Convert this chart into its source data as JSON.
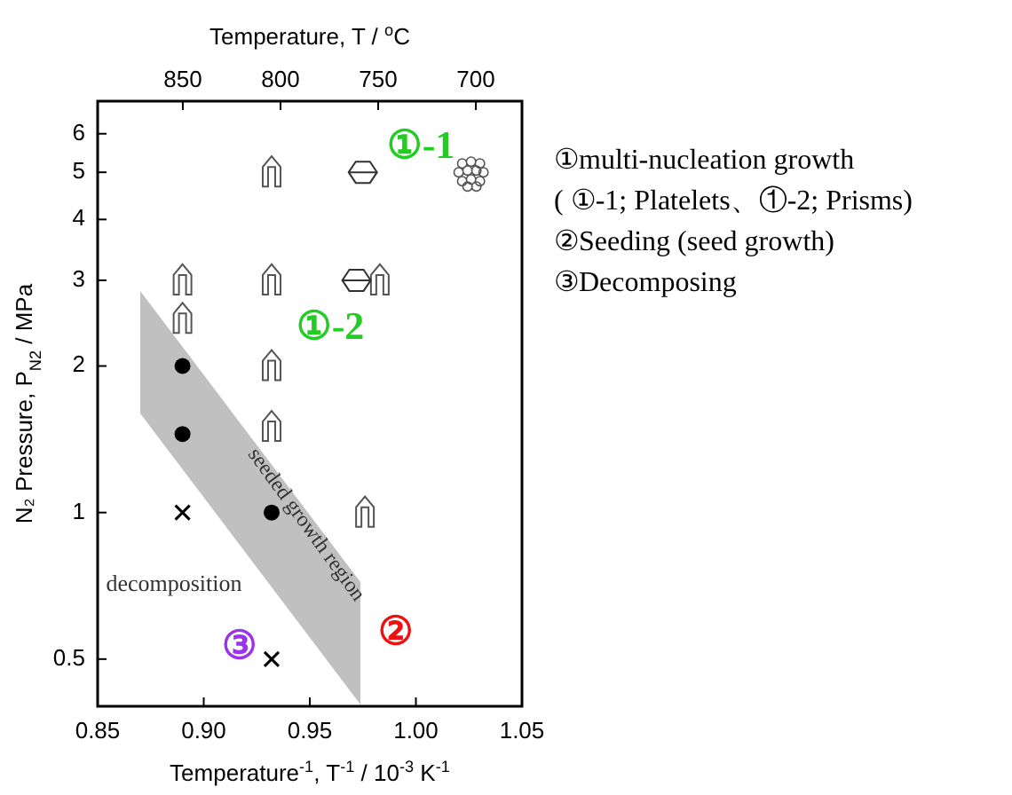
{
  "chart_data": {
    "type": "scatter",
    "xlabel": "Temperature$^{-1}$, T$^{-1}$ / 10$^{-3}$ K$^{-1}$",
    "ylabel": "N₂ Pressure, P$_{N2}$ / MPa",
    "x2label": "Temperature, T / $^{o}$C",
    "xlim": [
      0.85,
      1.05
    ],
    "xticks": [
      0.85,
      {
        "value": 0.9,
        "label": "0.90"
      },
      0.95,
      {
        "value": 1,
        "label": "1.00"
      },
      1.05
    ],
    "x2lim": [
      893.6,
      676.4
    ],
    "x2ticks": [
      850,
      800,
      750,
      700
    ],
    "ylim": [
      0.4,
      7
    ],
    "yticks": [
      0.5,
      1,
      2,
      3,
      4,
      5,
      6
    ],
    "log": "y",
    "series": [
      {
        "color": "#555555",
        "x": [
          0.89,
          0.89,
          0.932,
          0.932,
          0.932,
          0.932,
          0.983,
          0.976
        ],
        "values": [
          3,
          2.5,
          5,
          3,
          2,
          1.5,
          3,
          1
        ]
      },
      {
        "color": "#333333",
        "x": [
          0.975,
          0.972
        ],
        "values": [
          5,
          3
        ]
      },
      {
        "color": "#555555",
        "x": [
          1.026
        ],
        "values": [
          5
        ]
      },
      {
        "marker": "circle",
        "color": "#000000",
        "x": [
          0.89,
          0.89,
          0.932
        ],
        "values": [
          2,
          1.45,
          1
        ]
      },
      {
        "marker": "cross",
        "color": "#000000",
        "x": [
          0.89,
          0.932
        ],
        "values": [
          1,
          0.5
        ]
      }
    ],
    "annotations": [
      "①-1",
      "①-2",
      "②",
      "③",
      "decomposition",
      "seeded growth region",
      "①multi-nucleation growth",
      "( ①-1; Platelets、①-2; Prisms)",
      "②Seeding (seed growth)",
      "③Decomposing"
    ]
  }
}
